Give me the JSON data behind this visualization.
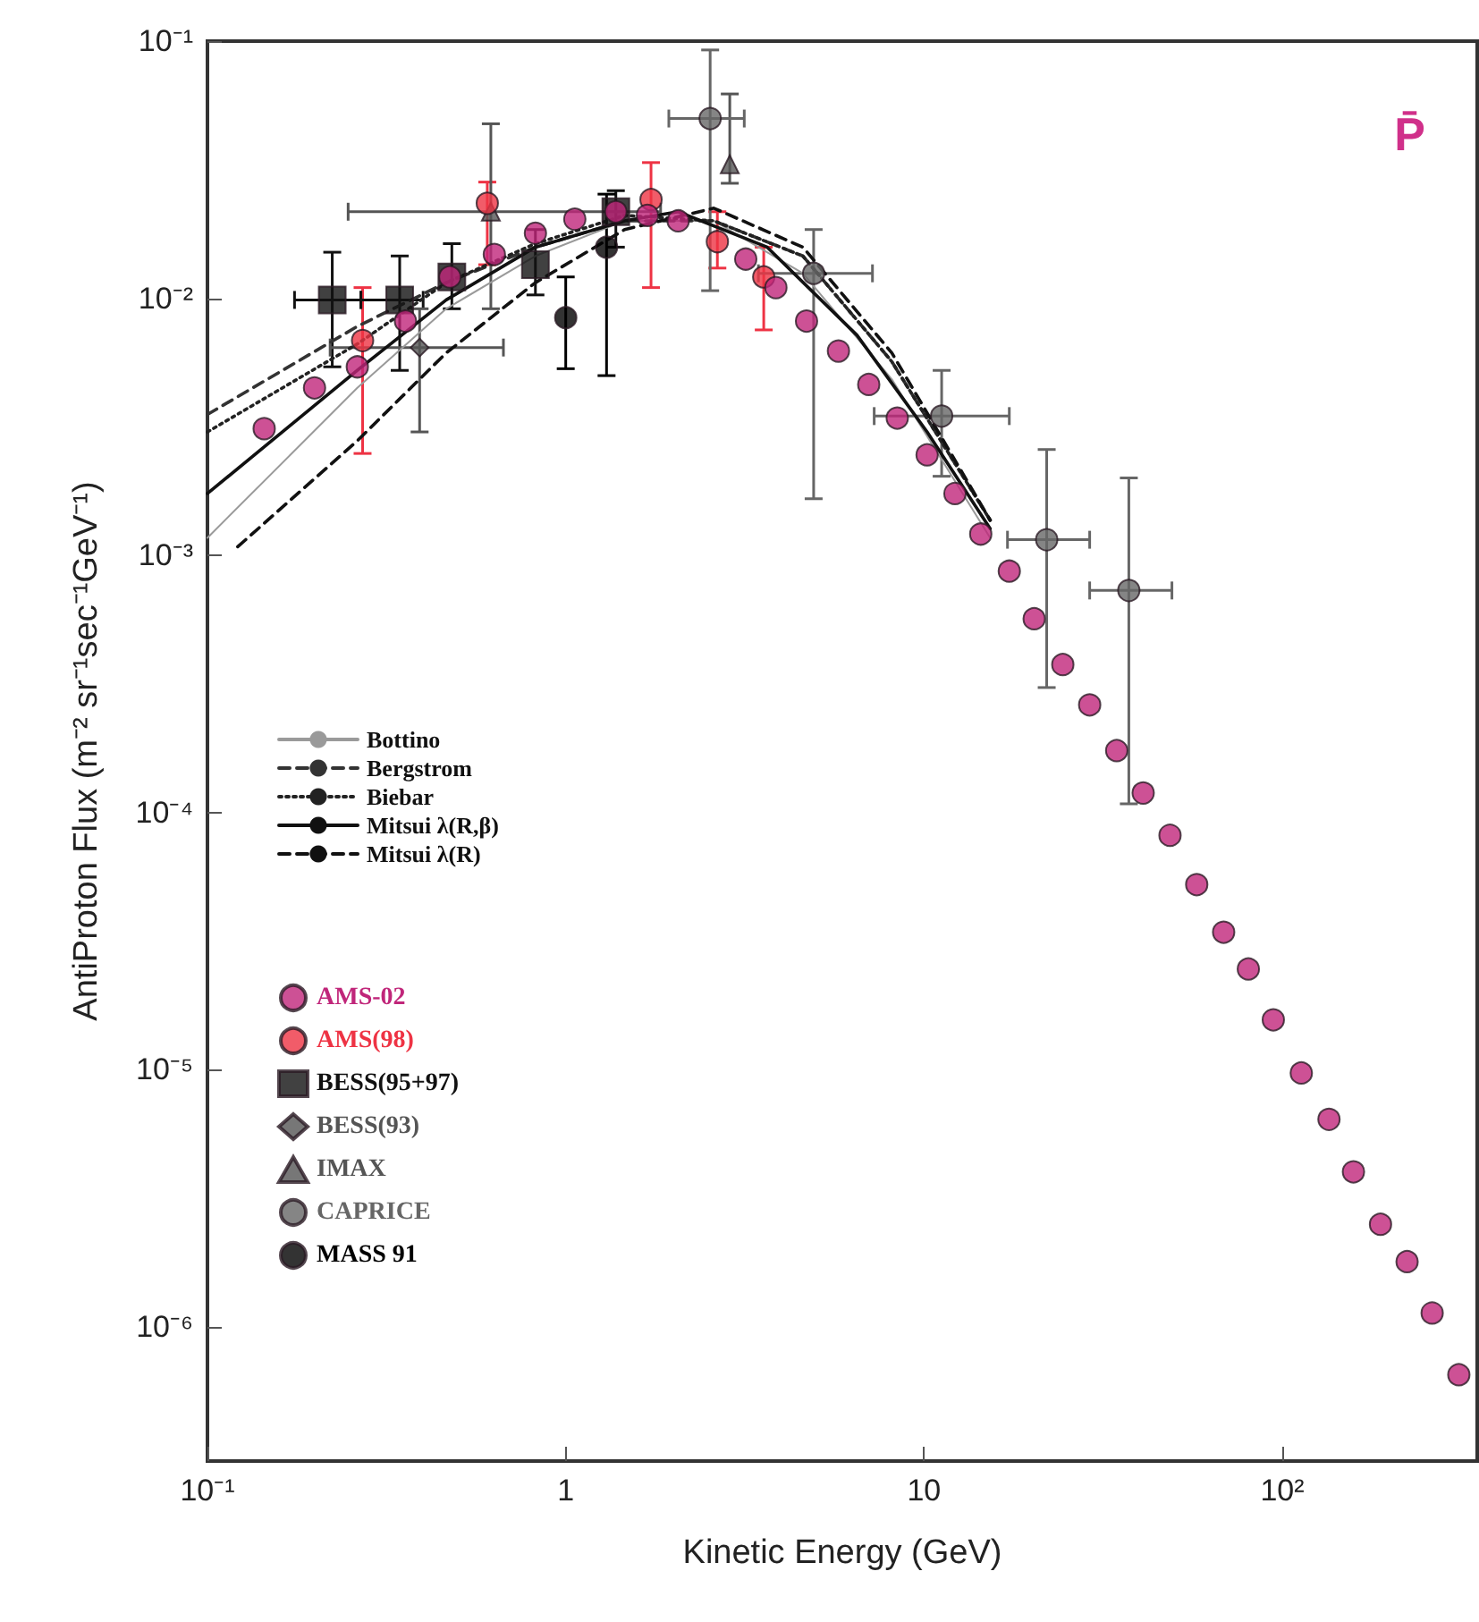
{
  "chart_data": {
    "type": "scatter",
    "xlabel": "Kinetic Energy (GeV)",
    "ylabel": "AntiProton Flux (m⁻² sr⁻¹sec⁻¹GeV⁻¹)",
    "annotations": [
      "P̄"
    ],
    "log": "xy",
    "xlim": [
      0.1,
      350
    ],
    "xticks": [
      {
        "value": 0.1,
        "label": "10⁻¹"
      },
      1,
      10,
      {
        "value": 100,
        "label": "10²"
      }
    ],
    "ylim": [
      3e-07,
      0.1
    ],
    "yticks": [
      {
        "value": 1e-06,
        "label": "10⁻⁶"
      },
      {
        "value": 1e-05,
        "label": "10⁻⁵"
      },
      {
        "value": 0.0001,
        "label": "10⁻⁴"
      },
      {
        "value": 0.001,
        "label": "10⁻³"
      },
      {
        "value": 0.01,
        "label": "10⁻²"
      },
      {
        "value": 0.1,
        "label": "10⁻¹"
      }
    ],
    "grid": false,
    "legend": "left",
    "series": [
      {
        "name": "Bottino",
        "type": "line",
        "marker": "none",
        "line_style": "solid",
        "color": "#9a9a9a",
        "x": [
          0.1,
          0.262,
          0.464,
          0.823,
          1.46,
          2.59,
          4.59,
          8.13,
          15.3
        ],
        "values": [
          0.00117,
          0.00448,
          0.0091,
          0.0146,
          0.02,
          0.02,
          0.0125,
          0.00484,
          0.00117
        ]
      },
      {
        "name": "Bergstrom",
        "type": "line",
        "marker": "none",
        "line_style": "dashed",
        "color": "#333333",
        "x": [
          0.1,
          0.262,
          0.464,
          0.823,
          1.46,
          2.59,
          4.59,
          8.13,
          15.3
        ],
        "values": [
          0.00353,
          0.00777,
          0.0115,
          0.0158,
          0.02,
          0.02,
          0.0146,
          0.00567,
          0.00137
        ]
      },
      {
        "name": "Biebar",
        "type": "line",
        "marker": "none",
        "line_style": "dotted",
        "color": "#222222",
        "x": [
          0.1,
          0.262,
          0.464,
          0.823,
          1.46,
          2.59,
          4.59,
          8.13,
          15.3
        ],
        "values": [
          0.00302,
          0.00664,
          0.0115,
          0.0163,
          0.021,
          0.02,
          0.0146,
          0.00567,
          0.00137
        ]
      },
      {
        "name": "Mitsui λ(R,β)",
        "type": "line",
        "marker": "none",
        "line_style": "solid",
        "color": "#111111",
        "x": [
          0.1,
          0.262,
          0.464,
          0.823,
          1.46,
          2.06,
          3.65,
          6.5,
          10.2,
          15.3
        ],
        "values": [
          0.00174,
          0.00524,
          0.00985,
          0.0158,
          0.02,
          0.0217,
          0.0158,
          0.00718,
          0.00302,
          0.00127
        ]
      },
      {
        "name": "Mitsui λ(R)",
        "type": "line",
        "marker": "none",
        "line_style": "dashed",
        "color": "#111111",
        "x": [
          0.1215,
          0.262,
          0.464,
          0.823,
          1.46,
          2.59,
          4.59,
          8.13,
          15.3
        ],
        "values": [
          0.00108,
          0.00279,
          0.00613,
          0.0115,
          0.0185,
          0.0224,
          0.0158,
          0.00613,
          0.00137
        ]
      },
      {
        "name": "AMS-02",
        "marker": "circle",
        "color": "#c0267a",
        "x": [
          0.144,
          0.199,
          0.262,
          0.357,
          0.475,
          0.632,
          0.823,
          1.06,
          1.38,
          1.69,
          2.06,
          3.18,
          3.86,
          4.7,
          5.77,
          7.01,
          8.42,
          10.2,
          12.2,
          14.4,
          17.3,
          20.3,
          24.4,
          29.0,
          34.5,
          40.9,
          48.6,
          57.7,
          68.6,
          80.4,
          94.4,
          113,
          135,
          158,
          188,
          223,
          262,
          311
        ],
        "values": [
          0.00311,
          0.00448,
          0.00541,
          0.00815,
          0.0121,
          0.0148,
          0.0179,
          0.0203,
          0.0217,
          0.021,
          0.02,
          0.0142,
          0.011,
          0.00815,
          0.00623,
          0.00462,
          0.00342,
          0.00246,
          0.00174,
          0.00121,
          0.000868,
          0.000567,
          0.000376,
          0.000262,
          0.000174,
          0.000119,
          8.15e-05,
          5.24e-05,
          3.42e-05,
          2.46e-05,
          1.56e-05,
          9.7e-06,
          6.4e-06,
          4e-06,
          2.5e-06,
          1.79e-06,
          1.13e-06,
          6.5e-07
        ]
      },
      {
        "name": "AMS(98)",
        "marker": "circle",
        "color": "#ee3344",
        "x": [
          0.271,
          0.604,
          1.73,
          2.65,
          3.57
        ],
        "values": [
          0.00685,
          0.0234,
          0.0242,
          0.0166,
          0.0121
        ],
        "errors": [
          [
            0.00249,
            0.011
          ],
          [
            0.0135,
            0.0283
          ],
          [
            0.011,
            0.0337
          ],
          [
            0.0131,
            0.0217
          ],
          [
            0.00753,
            0.0158
          ]
        ]
      },
      {
        "name": "BESS(95+97)",
        "marker": "square",
        "color": "#111111",
        "x": [
          0.223,
          0.344,
          0.481,
          0.823,
          1.38
        ],
        "values": [
          0.00985,
          0.00985,
          0.0121,
          0.0135,
          0.0217
        ],
        "errors": [
          [
            0.00541,
            0.0151
          ],
          [
            0.00524,
            0.0146
          ],
          [
            0.0091,
            0.0163
          ],
          [
            0.0103,
            0.0185
          ],
          [
            0.0158,
            0.0262
          ]
        ],
        "xerrors": [
          [
            0.175,
            0.268
          ],
          [
            0.268,
            0.4
          ],
          null,
          null,
          null
        ]
      },
      {
        "name": "BESS(93)",
        "marker": "diamond",
        "color": "#555555",
        "x": [
          0.391
        ],
        "values": [
          0.00643
        ],
        "errors": [
          [
            0.00302,
            0.0091
          ]
        ],
        "xerrors": [
          [
            0.22,
            0.67
          ]
        ]
      },
      {
        "name": "IMAX",
        "marker": "triangle",
        "color": "#555555",
        "x": [
          0.618,
          2.87
        ],
        "values": [
          0.0217,
          0.0332
        ],
        "errors": [
          [
            0.0091,
            0.0477
          ],
          [
            0.028,
            0.0623
          ]
        ],
        "xerrors": [
          [
            0.247,
            1.84
          ],
          null
        ]
      },
      {
        "name": "CAPRICE",
        "marker": "circle",
        "color": "#666666",
        "x": [
          2.53,
          4.92,
          11.2,
          22.0,
          37.3
        ],
        "values": [
          0.05,
          0.0125,
          0.00348,
          0.00115,
          0.00073
        ],
        "errors": [
          [
            0.0107,
            0.0924
          ],
          [
            0.00166,
            0.0185
          ],
          [
            0.00203,
            0.00524
          ],
          [
            0.000306,
            0.00258
          ],
          [
            0.000108,
            0.002
          ]
        ],
        "xerrors": [
          [
            1.94,
            3.15
          ],
          [
            3.45,
            7.18
          ],
          [
            7.26,
            17.3
          ],
          [
            17.1,
            29.0
          ],
          [
            29.0,
            49.2
          ]
        ]
      },
      {
        "name": "MASS 91",
        "marker": "circle",
        "color": "#000000",
        "x": [
          1.0,
          1.3
        ],
        "values": [
          0.00841,
          0.0158
        ],
        "errors": [
          [
            0.00532,
            0.0121
          ],
          [
            0.005,
            0.0254
          ]
        ]
      }
    ]
  }
}
